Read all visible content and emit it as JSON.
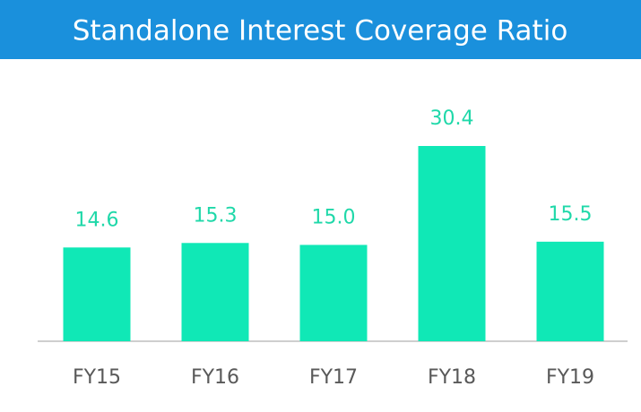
{
  "chart_data": {
    "type": "bar",
    "title": "Standalone Interest Coverage Ratio",
    "categories": [
      "FY15",
      "FY16",
      "FY17",
      "FY18",
      "FY19"
    ],
    "values": [
      14.6,
      15.3,
      15.0,
      30.4,
      15.5
    ],
    "value_labels": [
      "14.6",
      "15.3",
      "15.0",
      "30.4",
      "15.5"
    ],
    "color": "#10e8b6"
  }
}
